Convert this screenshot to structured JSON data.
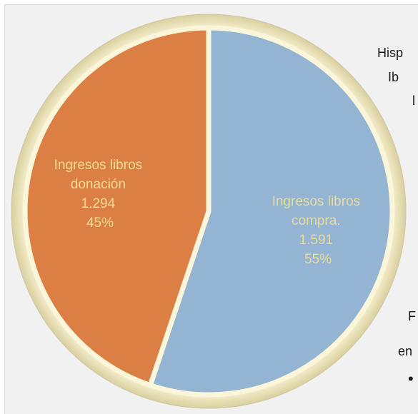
{
  "background_text": [
    {
      "id": "t1",
      "text": "Hisp"
    },
    {
      "id": "t2",
      "text": "Ib"
    },
    {
      "id": "t3",
      "text": "l"
    },
    {
      "id": "t4",
      "text": "F"
    },
    {
      "id": "t5",
      "text": "en"
    },
    {
      "id": "t6",
      "text": "•"
    }
  ],
  "chart_data": {
    "type": "pie",
    "slices": [
      {
        "label_lines": [
          "Ingresos libros",
          "compra.",
          "1.591",
          "55%"
        ],
        "value": 1591,
        "percent": 55,
        "color": "#93b4d3",
        "label_color": "#e9dc9c"
      },
      {
        "label_lines": [
          "Ingresos libros",
          "donación",
          "1.294",
          "45%"
        ],
        "value": 1294,
        "percent": 45,
        "color": "#dc7f45",
        "label_color": "#f4dc92"
      }
    ],
    "rim_color": "#f3ecc4",
    "separator_color": "#fbf6da"
  }
}
